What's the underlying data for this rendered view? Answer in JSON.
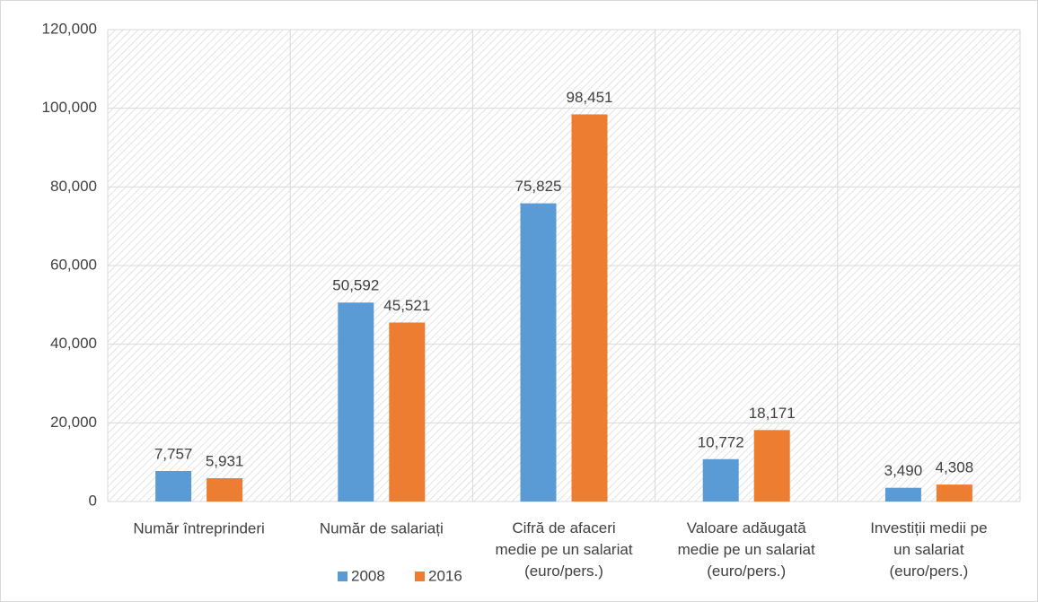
{
  "chart_data": {
    "type": "bar",
    "categories": [
      "Număr întreprinderi",
      "Număr de salariați",
      "Cifră de afaceri\nmedie pe un salariat\n(euro/pers.)",
      "Valoare adăugată\nmedie pe un salariat\n(euro/pers.)",
      "Investiții medii pe\nun salariat\n(euro/pers.)"
    ],
    "series": [
      {
        "name": "2008",
        "color": "#5b9bd5",
        "values": [
          7757,
          50592,
          75825,
          10772,
          3490
        ],
        "value_labels": [
          "7,757",
          "50,592",
          "75,825",
          "10,772",
          "3,490"
        ]
      },
      {
        "name": "2016",
        "color": "#ed7d31",
        "values": [
          5931,
          45521,
          98451,
          18171,
          4308
        ],
        "value_labels": [
          "5,931",
          "45,521",
          "98,451",
          "18,171",
          "4,308"
        ]
      }
    ],
    "ylim": [
      0,
      120000
    ],
    "yticks": [
      0,
      {
        "value": 20000,
        "label": "20,000"
      },
      {
        "value": 40000,
        "label": "40,000"
      },
      {
        "value": 60000,
        "label": "60,000"
      },
      {
        "value": 80000,
        "label": "80,000"
      },
      {
        "value": 100000,
        "label": "100,000"
      },
      {
        "value": 120000,
        "label": "120,000"
      }
    ],
    "grid": true,
    "legend": "bottom"
  }
}
